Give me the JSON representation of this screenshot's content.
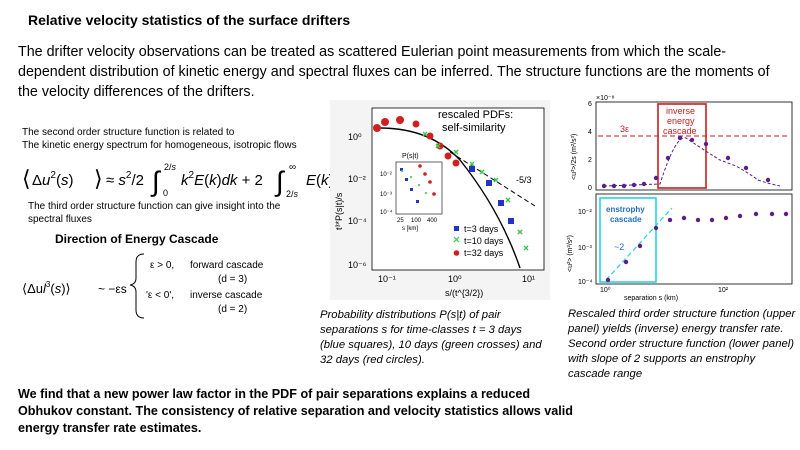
{
  "title": "Relative velocity statistics of the surface drifters",
  "intro": "The drifter velocity observations can be treated as scattered Eulerian point measurements from which the scale-dependent distribution of kinetic energy and spectral fluxes can be inferred. The structure functions are the moments of the velocity differences of the drifters.",
  "left": {
    "sf2_text_line1": "The second order structure function is related to",
    "sf2_text_line2": "The kinetic energy spectrum for homogeneous,  isotropic flows",
    "sf3_text": "The third order structure function can give insight into the spectral fluxes",
    "cascade_title": "Direction of Energy Cascade",
    "eq2": {
      "lhs": "⟨Δu",
      "rhs": "~ −εs",
      "case1_cond": "ε > 0,",
      "case1_label": "forward cascade",
      "case1_d": "(d = 3)",
      "case2_cond": "'ε < 0',",
      "case2_label": "inverse cascade",
      "case2_d": "(d = 2)"
    }
  },
  "middle_figure": {
    "annotation_title_line1": "rescaled  PDFs:",
    "annotation_title_line2": "self-similarity",
    "ylabel": "t³*P(s|t)/s",
    "xlabel": "s/(t^{3/2})",
    "slope_label": "-5/3",
    "y_ticks": [
      "10⁰",
      "10⁻²",
      "10⁻⁴",
      "10⁻⁶"
    ],
    "x_ticks": [
      "10⁻¹",
      "10⁰",
      "10¹"
    ],
    "inset": {
      "title": "P(s|t)",
      "xlabel": "s [km]",
      "x_ticks": [
        "25",
        "100",
        "400"
      ],
      "y_ticks": [
        "10⁻²",
        "10⁻³",
        "10⁻⁴"
      ]
    },
    "legend": [
      "t=3 days",
      "t=10 days",
      "t=32 days"
    ],
    "colors": {
      "t3": "#2432c8",
      "t10": "#3cc850",
      "t32": "#d21e1e"
    }
  },
  "middle_caption": "Probability distributions P(s|t) of pair separations s for time-classes t = 3 days (blue squares), 10 days (green crosses) and 32 days (red circles).",
  "right_figure": {
    "top": {
      "ylabel": "<u³>/2s (m²/s³)",
      "scale": "×10⁻⁸",
      "y_ticks": [
        "6",
        "4",
        "2",
        "0"
      ],
      "box_label_line1": "inverse",
      "box_label_line2": "energy",
      "box_label_line3": "cascade",
      "line_label": "3ε",
      "box_color": "#c81e1e"
    },
    "bottom": {
      "ylabel": "<u²> (m²/s²)",
      "y_ticks": [
        "10⁻²",
        "10⁻³",
        "10⁻⁴"
      ],
      "x_ticks": [
        "10⁰",
        "10²"
      ],
      "xlabel": "separation s (km)",
      "box_label_line1": "enstrophy",
      "box_label_line2": "cascade",
      "slope_label": "~2",
      "box_color": "#28d2e1"
    },
    "points_color": "#5a1e8c"
  },
  "right_caption": "Rescaled third order structure function (upper panel) yields (inverse) energy transfer rate.   Second order structure function (lower panel) with slope  of 2 supports  an enstrophy cascade range",
  "conclusion": "We find that a new power law factor in the PDF of pair separations explains a reduced Obhukov constant.  The consistency of relative separation and velocity statistics allows valid energy transfer rate estimates."
}
